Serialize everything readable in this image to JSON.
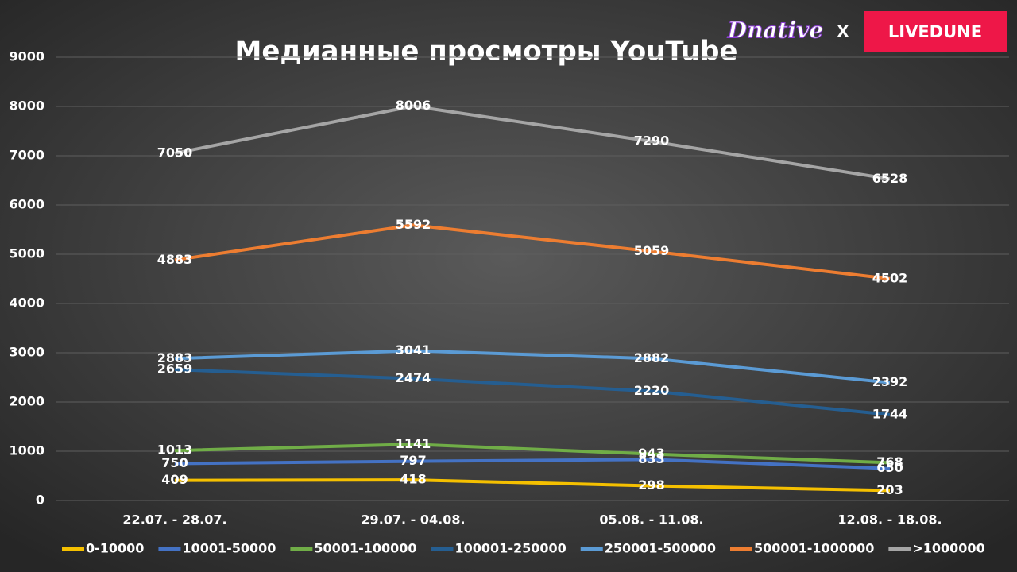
{
  "header": {
    "brand": "Dnative",
    "separator": "X",
    "partner": "LIVEDUNE"
  },
  "chart_data": {
    "type": "line",
    "title": "Медианные просмотры YouTube",
    "categories": [
      "22.07. - 28.07.",
      "29.07. - 04.08.",
      "05.08. - 11.08.",
      "12.08. - 18.08."
    ],
    "series": [
      {
        "name": "0-10000",
        "color": "#f5c000",
        "values": [
          409,
          418,
          298,
          203
        ]
      },
      {
        "name": "10001-50000",
        "color": "#4472c4",
        "values": [
          750,
          797,
          833,
          650
        ]
      },
      {
        "name": "50001-100000",
        "color": "#70ad47",
        "values": [
          1013,
          1141,
          943,
          768
        ]
      },
      {
        "name": "100001-250000",
        "color": "#255e91",
        "values": [
          2659,
          2474,
          2220,
          1744
        ]
      },
      {
        "name": "250001-500000",
        "color": "#5b9bd5",
        "values": [
          2883,
          3041,
          2882,
          2392
        ]
      },
      {
        "name": "500001-1000000",
        "color": "#ed7d31",
        "values": [
          4883,
          5592,
          5059,
          4502
        ]
      },
      {
        "name": ">1000000",
        "color": "#a5a5a5",
        "values": [
          7050,
          8006,
          7290,
          6528
        ]
      }
    ],
    "ylim": [
      0,
      9000
    ],
    "yticks": [
      0,
      1000,
      2000,
      3000,
      4000,
      5000,
      6000,
      7000,
      8000,
      9000
    ],
    "grid": true,
    "legend": "bottom",
    "data_labels": true
  }
}
